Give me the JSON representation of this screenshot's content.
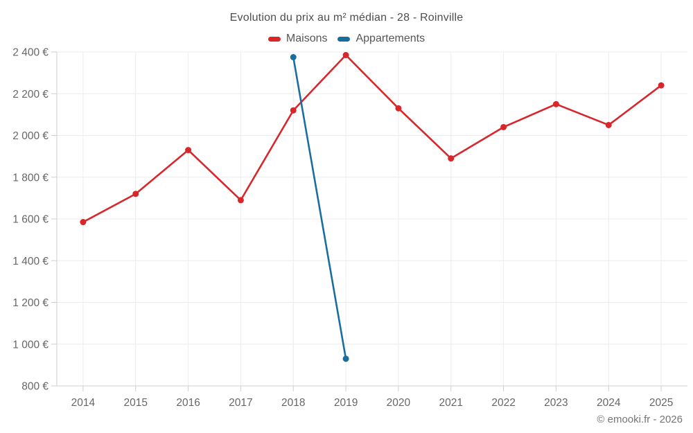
{
  "header": {
    "title": "Evolution du prix au m² médian - 28 - Roinville"
  },
  "footer": {
    "credit": "© emooki.fr - 2026"
  },
  "chart_data": {
    "type": "line",
    "title": "Evolution du prix au m² médian - 28 - Roinville",
    "categories": [
      "2014",
      "2015",
      "2016",
      "2017",
      "2018",
      "2019",
      "2020",
      "2021",
      "2022",
      "2023",
      "2024",
      "2025"
    ],
    "series": [
      {
        "name": "Maisons",
        "color": "#d8262b",
        "values": [
          1585,
          1720,
          1930,
          1690,
          2120,
          2385,
          2130,
          1890,
          2040,
          2150,
          2050,
          2240
        ]
      },
      {
        "name": "Appartements",
        "color": "#1a6d9f",
        "values": [
          null,
          null,
          null,
          null,
          2375,
          930,
          null,
          null,
          null,
          null,
          null,
          null
        ]
      }
    ],
    "xlabel": "",
    "ylabel": "",
    "ylim": [
      800,
      2400
    ],
    "ytick_step": 200,
    "y_tick_labels": [
      "800 €",
      "1 000 €",
      "1 200 €",
      "1 400 €",
      "1 600 €",
      "1 800 €",
      "2 000 €",
      "2 200 €",
      "2 400 €"
    ],
    "grid": true,
    "legend_position": "top",
    "marker": "circle"
  }
}
